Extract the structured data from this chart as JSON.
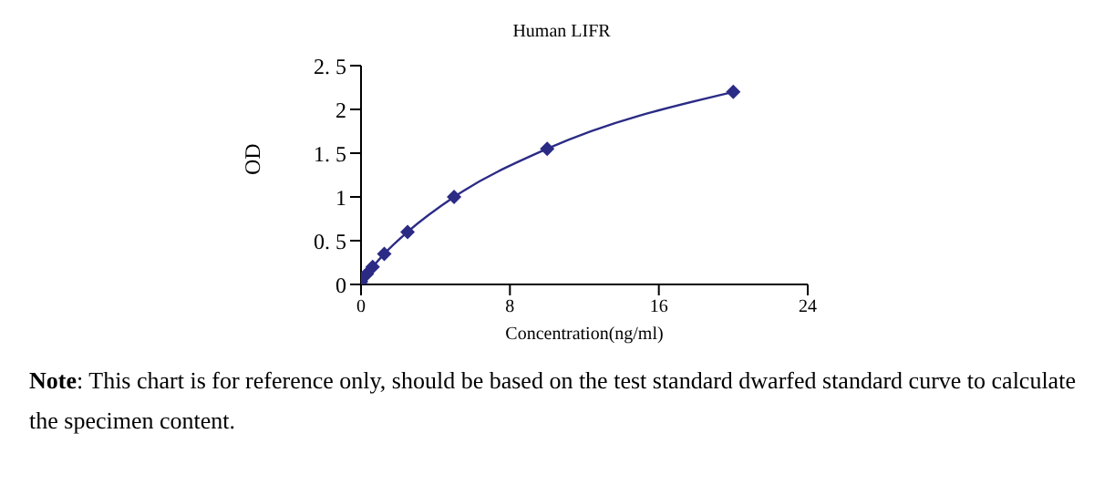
{
  "chart_data": {
    "type": "line",
    "title": "Human LIFR",
    "xlabel": "Concentration(ng/ml)",
    "ylabel": "OD",
    "x": [
      0,
      0.3125,
      0.625,
      1.25,
      2.5,
      5,
      10,
      20
    ],
    "series": [
      {
        "color": "#2b2b86",
        "values": [
          0.03,
          0.12,
          0.2,
          0.35,
          0.6,
          1.0,
          1.55,
          2.2
        ]
      }
    ],
    "xlim": [
      0,
      24
    ],
    "xticks": [
      0,
      8,
      16,
      24
    ],
    "ylim": [
      0,
      2.5
    ],
    "yticks": [
      0,
      {
        "value": 0.5,
        "label": "0. 5"
      },
      1,
      {
        "value": 1.5,
        "label": "1. 5"
      },
      2,
      {
        "value": 2.5,
        "label": "2. 5"
      }
    ],
    "marker": "diamond",
    "line_style": "solid",
    "grid": false,
    "legend": false,
    "annotations": [
      "Note: This chart is for reference only, should be based on the test standard dwarfed standard curve to calculate the specimen content."
    ]
  }
}
